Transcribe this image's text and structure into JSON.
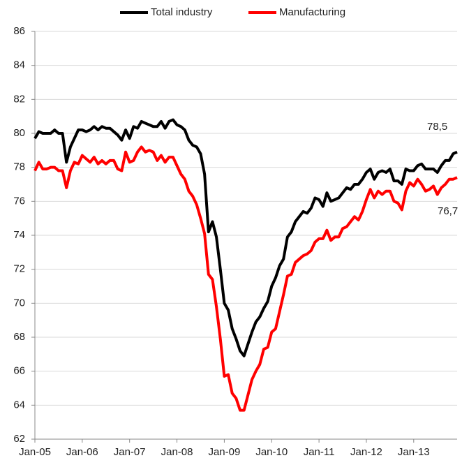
{
  "chart_data": {
    "type": "line",
    "categories": [
      "Jan-05",
      null,
      null,
      null,
      null,
      null,
      null,
      null,
      null,
      null,
      null,
      null,
      "Jan-06",
      null,
      null,
      null,
      null,
      null,
      null,
      null,
      null,
      null,
      null,
      null,
      "Jan-07",
      null,
      null,
      null,
      null,
      null,
      null,
      null,
      null,
      null,
      null,
      null,
      "Jan-08",
      null,
      null,
      null,
      null,
      null,
      null,
      null,
      null,
      null,
      null,
      null,
      "Jan-09",
      null,
      null,
      null,
      null,
      null,
      null,
      null,
      null,
      null,
      null,
      null,
      "Jan-10",
      null,
      null,
      null,
      null,
      null,
      null,
      null,
      null,
      null,
      null,
      null,
      "Jan-11",
      null,
      null,
      null,
      null,
      null,
      null,
      null,
      null,
      null,
      null,
      null,
      "Jan-12",
      null,
      null,
      null,
      null,
      null,
      null,
      null,
      null,
      null,
      null,
      null,
      "Jan-13",
      null,
      null,
      null,
      null,
      null,
      null,
      null,
      null,
      null,
      null,
      null
    ],
    "series": [
      {
        "name": "Total industry",
        "color": "#000000",
        "values": [
          79.7,
          80.1,
          80.0,
          80.0,
          80.0,
          80.2,
          80.0,
          80.0,
          78.3,
          79.2,
          79.7,
          80.2,
          80.2,
          80.1,
          80.2,
          80.4,
          80.2,
          80.4,
          80.3,
          80.3,
          80.1,
          79.9,
          79.6,
          80.2,
          79.7,
          80.4,
          80.3,
          80.7,
          80.6,
          80.5,
          80.4,
          80.4,
          80.7,
          80.3,
          80.7,
          80.8,
          80.5,
          80.4,
          80.2,
          79.6,
          79.3,
          79.2,
          78.8,
          77.6,
          74.2,
          74.8,
          73.9,
          72.0,
          70.0,
          69.6,
          68.5,
          67.9,
          67.2,
          66.9,
          67.6,
          68.3,
          68.9,
          69.2,
          69.7,
          70.1,
          71.0,
          71.5,
          72.2,
          72.6,
          73.9,
          74.2,
          74.8,
          75.1,
          75.4,
          75.3,
          75.6,
          76.2,
          76.1,
          75.7,
          76.5,
          76.0,
          76.1,
          76.2,
          76.5,
          76.8,
          76.7,
          77.0,
          77.0,
          77.3,
          77.7,
          77.9,
          77.3,
          77.7,
          77.8,
          77.7,
          77.9,
          77.2,
          77.2,
          77.0,
          77.9,
          77.8,
          77.8,
          78.1,
          78.2,
          77.9,
          77.9,
          77.9,
          77.7,
          78.1,
          78.4,
          78.4,
          78.8,
          78.9
        ]
      },
      {
        "name": "Manufacturing",
        "color": "#ff0000",
        "values": [
          77.8,
          78.3,
          77.9,
          77.9,
          78.0,
          78.0,
          77.8,
          77.8,
          76.8,
          77.8,
          78.3,
          78.2,
          78.7,
          78.5,
          78.3,
          78.6,
          78.2,
          78.4,
          78.2,
          78.4,
          78.4,
          77.9,
          77.8,
          78.9,
          78.3,
          78.4,
          78.9,
          79.2,
          78.9,
          79.0,
          78.9,
          78.4,
          78.7,
          78.3,
          78.6,
          78.6,
          78.1,
          77.6,
          77.3,
          76.6,
          76.3,
          75.8,
          75.0,
          74.1,
          71.7,
          71.4,
          69.8,
          67.9,
          65.7,
          65.8,
          64.7,
          64.4,
          63.7,
          63.7,
          64.6,
          65.5,
          66.0,
          66.4,
          67.3,
          67.4,
          68.3,
          68.5,
          69.5,
          70.5,
          71.6,
          71.7,
          72.4,
          72.6,
          72.8,
          72.9,
          73.1,
          73.6,
          73.8,
          73.8,
          74.3,
          73.7,
          73.9,
          73.9,
          74.4,
          74.5,
          74.8,
          75.1,
          74.9,
          75.4,
          76.1,
          76.7,
          76.2,
          76.6,
          76.4,
          76.6,
          76.6,
          76.0,
          75.9,
          75.5,
          76.6,
          77.1,
          76.9,
          77.3,
          77.0,
          76.6,
          76.7,
          76.9,
          76.4,
          76.8,
          77.0,
          77.3,
          77.3,
          77.4
        ]
      }
    ],
    "ylim": [
      62,
      86
    ],
    "yticks": [
      62,
      64,
      66,
      68,
      70,
      72,
      74,
      76,
      78,
      80,
      82,
      84,
      86
    ],
    "grid": true,
    "legend": "top",
    "annotations": [
      {
        "text": "78,5"
      },
      {
        "text": "76,7"
      }
    ]
  }
}
